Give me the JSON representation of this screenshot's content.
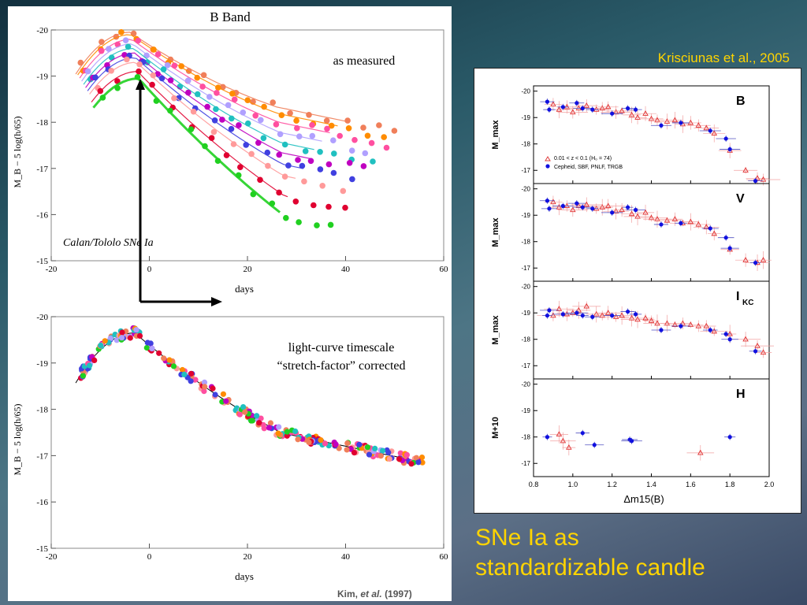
{
  "slide": {
    "title_line1": "SNe Ia as",
    "title_line2": "standardizable candle",
    "credit_right": "Krisciunas et al., 2005",
    "credit_left_name": "Kim,",
    "credit_left_etal": "et al.",
    "credit_left_year": "(1997)"
  },
  "chart_data": [
    {
      "type": "scatter",
      "title": "B Band",
      "annotation": "as measured",
      "sample_label": "Calan/Tololo SNe Ia",
      "xlabel": "days",
      "ylabel": "M_B − 5 log(h/65)",
      "xlim": [
        -20,
        60
      ],
      "ylim": [
        -15,
        -20
      ],
      "xticks": [
        -20,
        0,
        20,
        40,
        60
      ],
      "yticks": [
        -20,
        -19,
        -18,
        -17,
        -16,
        -15
      ],
      "curves_peak_mag": [
        -19.95,
        -19.9,
        -19.8,
        -19.7,
        -19.6,
        -19.5,
        -19.4,
        -19.3,
        -19.1,
        -18.95
      ],
      "curves_decline_rate": [
        0.072,
        0.075,
        0.078,
        0.082,
        0.086,
        0.09,
        0.095,
        0.1,
        0.108,
        0.118
      ],
      "series_colors": [
        "#f07f5a",
        "#ff8c00",
        "#ff4fa0",
        "#b0a0ff",
        "#20c0c0",
        "#c000c0",
        "#4040e0",
        "#ff9a9a",
        "#e00030",
        "#20d020"
      ]
    },
    {
      "type": "scatter",
      "annotation_line1": "light-curve timescale",
      "annotation_line2": "“stretch-factor” corrected",
      "xlabel": "days",
      "ylabel": "M_B − 5 log(h/65)",
      "xlim": [
        -20,
        60
      ],
      "ylim": [
        -15,
        -20
      ],
      "xticks": [
        -20,
        0,
        20,
        40,
        60
      ],
      "yticks": [
        -20,
        -19,
        -18,
        -17,
        -16,
        -15
      ],
      "template_peak_mag": -19.65,
      "template_peak_day": -3
    },
    {
      "type": "scatter",
      "xlabel": "Δm15(B)",
      "xlim": [
        0.8,
        2.0
      ],
      "xticks": [
        0.8,
        1.0,
        1.2,
        1.4,
        1.6,
        1.8,
        2.0
      ],
      "legend": {
        "placement": "left",
        "entry_hubble": "0.01 < z < 0.1 (H₀ = 74)",
        "entry_cepheid": "Cepheid, SBF, PNLF, TRGB"
      },
      "panels": [
        {
          "band": "B",
          "ylabel": "M_max",
          "ylim": [
            -16.5,
            -20.2
          ],
          "yticks": [
            -20,
            -19,
            -18,
            -17
          ],
          "cepheid": [
            [
              0.87,
              -19.6
            ],
            [
              0.88,
              -19.3
            ],
            [
              0.95,
              -19.4
            ],
            [
              1.02,
              -19.55
            ],
            [
              1.05,
              -19.35
            ],
            [
              1.1,
              -19.3
            ],
            [
              1.2,
              -19.15
            ],
            [
              1.28,
              -19.35
            ],
            [
              1.32,
              -19.3
            ],
            [
              1.45,
              -18.7
            ],
            [
              1.55,
              -18.8
            ],
            [
              1.7,
              -18.5
            ],
            [
              1.78,
              -18.2
            ],
            [
              1.8,
              -17.8
            ],
            [
              1.93,
              -16.6
            ]
          ],
          "hubble": [
            [
              0.9,
              -19.5
            ],
            [
              0.93,
              -19.3
            ],
            [
              0.97,
              -19.4
            ],
            [
              1.0,
              -19.2
            ],
            [
              1.03,
              -19.35
            ],
            [
              1.07,
              -19.45
            ],
            [
              1.12,
              -19.3
            ],
            [
              1.15,
              -19.35
            ],
            [
              1.18,
              -19.4
            ],
            [
              1.22,
              -19.2
            ],
            [
              1.25,
              -19.25
            ],
            [
              1.3,
              -19.1
            ],
            [
              1.33,
              -19.0
            ],
            [
              1.37,
              -19.15
            ],
            [
              1.4,
              -18.95
            ],
            [
              1.43,
              -18.9
            ],
            [
              1.48,
              -18.85
            ],
            [
              1.52,
              -18.9
            ],
            [
              1.56,
              -18.75
            ],
            [
              1.6,
              -18.8
            ],
            [
              1.64,
              -18.7
            ],
            [
              1.68,
              -18.6
            ],
            [
              1.72,
              -18.4
            ],
            [
              1.8,
              -17.75
            ],
            [
              1.88,
              -17.0
            ],
            [
              1.94,
              -16.7
            ],
            [
              1.97,
              -16.65
            ]
          ]
        },
        {
          "band": "V",
          "ylabel": "M_max",
          "ylim": [
            -16.5,
            -20.2
          ],
          "yticks": [
            -20,
            -19,
            -18,
            -17
          ],
          "cepheid": [
            [
              0.87,
              -19.55
            ],
            [
              0.88,
              -19.25
            ],
            [
              0.95,
              -19.35
            ],
            [
              1.02,
              -19.45
            ],
            [
              1.05,
              -19.3
            ],
            [
              1.1,
              -19.25
            ],
            [
              1.2,
              -19.1
            ],
            [
              1.28,
              -19.3
            ],
            [
              1.32,
              -19.2
            ],
            [
              1.45,
              -18.65
            ],
            [
              1.55,
              -18.7
            ],
            [
              1.7,
              -18.5
            ],
            [
              1.78,
              -18.15
            ],
            [
              1.8,
              -17.75
            ],
            [
              1.93,
              -17.2
            ]
          ],
          "hubble": [
            [
              0.9,
              -19.5
            ],
            [
              0.93,
              -19.3
            ],
            [
              0.97,
              -19.35
            ],
            [
              1.0,
              -19.2
            ],
            [
              1.03,
              -19.35
            ],
            [
              1.07,
              -19.4
            ],
            [
              1.12,
              -19.25
            ],
            [
              1.15,
              -19.3
            ],
            [
              1.18,
              -19.35
            ],
            [
              1.22,
              -19.15
            ],
            [
              1.25,
              -19.2
            ],
            [
              1.3,
              -19.05
            ],
            [
              1.33,
              -18.95
            ],
            [
              1.37,
              -19.1
            ],
            [
              1.4,
              -18.9
            ],
            [
              1.43,
              -18.85
            ],
            [
              1.48,
              -18.8
            ],
            [
              1.52,
              -18.85
            ],
            [
              1.56,
              -18.7
            ],
            [
              1.6,
              -18.75
            ],
            [
              1.64,
              -18.65
            ],
            [
              1.68,
              -18.55
            ],
            [
              1.72,
              -18.3
            ],
            [
              1.8,
              -17.7
            ],
            [
              1.88,
              -17.3
            ],
            [
              1.94,
              -17.2
            ],
            [
              1.97,
              -17.3
            ]
          ]
        },
        {
          "band": "I",
          "band_sub": "KC",
          "ylabel": "M_max",
          "ylim": [
            -16.5,
            -20.2
          ],
          "yticks": [
            -20,
            -19,
            -18,
            -17
          ],
          "cepheid": [
            [
              0.87,
              -18.9
            ],
            [
              0.88,
              -19.1
            ],
            [
              0.95,
              -18.95
            ],
            [
              1.02,
              -19.0
            ],
            [
              1.05,
              -18.9
            ],
            [
              1.1,
              -18.85
            ],
            [
              1.2,
              -18.9
            ],
            [
              1.28,
              -19.05
            ],
            [
              1.32,
              -18.95
            ],
            [
              1.45,
              -18.35
            ],
            [
              1.55,
              -18.5
            ],
            [
              1.7,
              -18.35
            ],
            [
              1.78,
              -18.2
            ],
            [
              1.8,
              -18.0
            ],
            [
              1.93,
              -17.55
            ]
          ],
          "hubble": [
            [
              0.9,
              -18.9
            ],
            [
              0.93,
              -19.15
            ],
            [
              0.97,
              -18.95
            ],
            [
              1.0,
              -19.0
            ],
            [
              1.03,
              -19.1
            ],
            [
              1.07,
              -19.25
            ],
            [
              1.12,
              -18.95
            ],
            [
              1.15,
              -18.9
            ],
            [
              1.18,
              -19.0
            ],
            [
              1.22,
              -18.85
            ],
            [
              1.25,
              -18.9
            ],
            [
              1.3,
              -18.8
            ],
            [
              1.33,
              -18.75
            ],
            [
              1.37,
              -18.8
            ],
            [
              1.4,
              -18.7
            ],
            [
              1.43,
              -18.6
            ],
            [
              1.48,
              -18.6
            ],
            [
              1.52,
              -18.55
            ],
            [
              1.56,
              -18.6
            ],
            [
              1.6,
              -18.55
            ],
            [
              1.64,
              -18.5
            ],
            [
              1.68,
              -18.5
            ],
            [
              1.72,
              -18.3
            ],
            [
              1.8,
              -18.2
            ],
            [
              1.88,
              -18.0
            ],
            [
              1.94,
              -17.75
            ],
            [
              1.97,
              -17.5
            ]
          ]
        },
        {
          "band": "H",
          "ylabel": "M+10",
          "ylim": [
            -16.5,
            -20.2
          ],
          "yticks": [
            -20,
            -19,
            -18,
            -17
          ],
          "cepheid": [
            [
              0.87,
              -18.0
            ],
            [
              1.05,
              -18.15
            ],
            [
              1.11,
              -17.7
            ],
            [
              1.29,
              -17.9
            ],
            [
              1.3,
              -17.85
            ],
            [
              1.8,
              -18.0
            ]
          ],
          "hubble": [
            [
              0.93,
              -18.1
            ],
            [
              0.95,
              -17.85
            ],
            [
              0.98,
              -17.6
            ],
            [
              1.65,
              -17.4
            ]
          ]
        }
      ]
    }
  ]
}
